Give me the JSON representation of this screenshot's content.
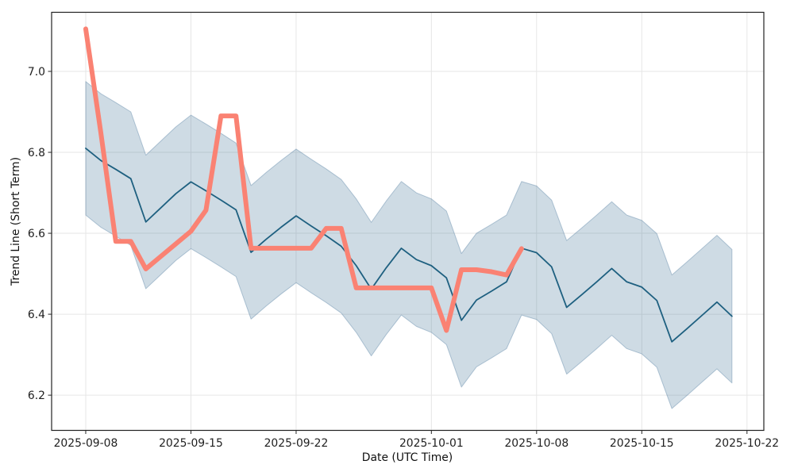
{
  "chart_data": {
    "type": "line",
    "title": "",
    "xlabel": "Date (UTC Time)",
    "ylabel": "Trend Line (Short Term)",
    "grid": true,
    "legend": "none",
    "background": "#ffffff",
    "grid_color": "#e6e6e6",
    "frame_color": "#222222",
    "xlim_days": [
      -2.27,
      45.12
    ],
    "ylim": [
      6.113,
      7.146
    ],
    "x_ticks": [
      "2025-09-08",
      "2025-09-15",
      "2025-09-22",
      "2025-10-01",
      "2025-10-08",
      "2025-10-15",
      "2025-10-22"
    ],
    "y_ticks": [
      {
        "label": "6.2",
        "value": 6.2
      },
      {
        "label": "6.4",
        "value": 6.4
      },
      {
        "label": "6.6",
        "value": 6.6
      },
      {
        "label": "6.8",
        "value": 6.8
      },
      {
        "label": "7.0",
        "value": 7.0
      }
    ],
    "dates": [
      "2025-09-08",
      "2025-09-09",
      "2025-09-10",
      "2025-09-11",
      "2025-09-12",
      "2025-09-13",
      "2025-09-14",
      "2025-09-15",
      "2025-09-16",
      "2025-09-17",
      "2025-09-18",
      "2025-09-19",
      "2025-09-20",
      "2025-09-21",
      "2025-09-22",
      "2025-09-23",
      "2025-09-24",
      "2025-09-25",
      "2025-09-26",
      "2025-09-27",
      "2025-09-28",
      "2025-09-29",
      "2025-09-30",
      "2025-10-01",
      "2025-10-02",
      "2025-10-03",
      "2025-10-04",
      "2025-10-05",
      "2025-10-06",
      "2025-10-07",
      "2025-10-08",
      "2025-10-09",
      "2025-10-10",
      "2025-10-11",
      "2025-10-12",
      "2025-10-13",
      "2025-10-14",
      "2025-10-15",
      "2025-10-16",
      "2025-10-17",
      "2025-10-18",
      "2025-10-19",
      "2025-10-20",
      "2025-10-21"
    ],
    "series": [
      {
        "name": "confidence-band",
        "type": "band",
        "fill": "rgba(61,110,148,0.25)",
        "edge": "rgba(61,110,148,0.35)",
        "upper": [
          6.975,
          6.945,
          6.923,
          6.9,
          6.793,
          6.828,
          6.863,
          6.892,
          6.87,
          6.847,
          6.823,
          6.718,
          6.75,
          6.78,
          6.808,
          6.783,
          6.759,
          6.733,
          6.685,
          6.627,
          6.68,
          6.728,
          6.7,
          6.685,
          6.655,
          6.55,
          6.6,
          6.622,
          6.645,
          6.728,
          6.717,
          6.682,
          6.582,
          6.613,
          6.645,
          6.678,
          6.645,
          6.632,
          6.599,
          6.497,
          6.529,
          6.562,
          6.595,
          6.56
        ],
        "lower": [
          6.645,
          6.615,
          6.593,
          6.57,
          6.463,
          6.498,
          6.533,
          6.562,
          6.54,
          6.517,
          6.493,
          6.388,
          6.42,
          6.45,
          6.478,
          6.453,
          6.429,
          6.403,
          6.355,
          6.297,
          6.35,
          6.398,
          6.37,
          6.355,
          6.325,
          6.22,
          6.27,
          6.292,
          6.315,
          6.398,
          6.387,
          6.352,
          6.252,
          6.283,
          6.315,
          6.348,
          6.315,
          6.302,
          6.269,
          6.167,
          6.199,
          6.232,
          6.265,
          6.23
        ]
      },
      {
        "name": "trend-line-short-term",
        "type": "line",
        "color": "#1e6080",
        "width": 1.8,
        "values": [
          6.81,
          6.78,
          6.758,
          6.735,
          6.628,
          6.663,
          6.698,
          6.727,
          6.705,
          6.682,
          6.658,
          6.553,
          6.585,
          6.615,
          6.643,
          6.618,
          6.594,
          6.568,
          6.52,
          6.462,
          6.515,
          6.563,
          6.535,
          6.52,
          6.49,
          6.385,
          6.435,
          6.457,
          6.48,
          6.563,
          6.552,
          6.517,
          6.417,
          6.448,
          6.48,
          6.513,
          6.48,
          6.467,
          6.434,
          6.332,
          6.364,
          6.397,
          6.43,
          6.395
        ]
      },
      {
        "name": "highlight-overlay-line",
        "type": "line",
        "color": "#fa8273",
        "width": 6,
        "values": [
          7.105,
          6.85,
          6.58,
          6.58,
          6.512,
          6.543,
          6.574,
          6.605,
          6.657,
          6.89,
          6.89,
          6.563,
          6.563,
          6.563,
          6.563,
          6.563,
          6.612,
          6.612,
          6.465,
          6.465,
          6.465,
          6.465,
          6.465,
          6.465,
          6.36,
          6.51,
          6.51,
          6.505,
          6.497,
          6.562
        ]
      }
    ]
  }
}
